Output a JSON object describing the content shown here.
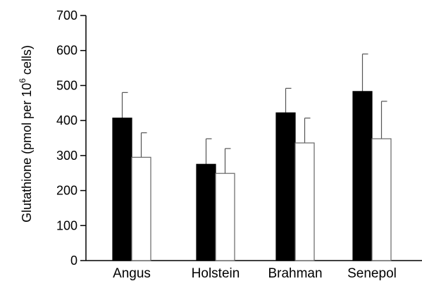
{
  "chart_data": {
    "type": "bar",
    "ylabel": "Glutathione (pmol per 10",
    "ylabel_superscript": "6",
    "ylabel_suffix": " cells)",
    "xlabel": "",
    "ylim": [
      0,
      700
    ],
    "yticks": [
      "0",
      "100",
      "200",
      "300",
      "400",
      "500",
      "600",
      "700"
    ],
    "categories": [
      "Angus",
      "Holstein",
      "Brahman",
      "Senepol"
    ],
    "series": [
      {
        "fill": "#000000",
        "values": [
          407,
          275,
          422,
          483
        ],
        "errors": [
          73,
          73,
          70,
          107
        ]
      },
      {
        "fill": "#ffffff",
        "values": [
          295,
          249,
          336,
          348
        ],
        "errors": [
          70,
          71,
          71,
          107
        ]
      }
    ],
    "grid": false,
    "legend": "none"
  }
}
